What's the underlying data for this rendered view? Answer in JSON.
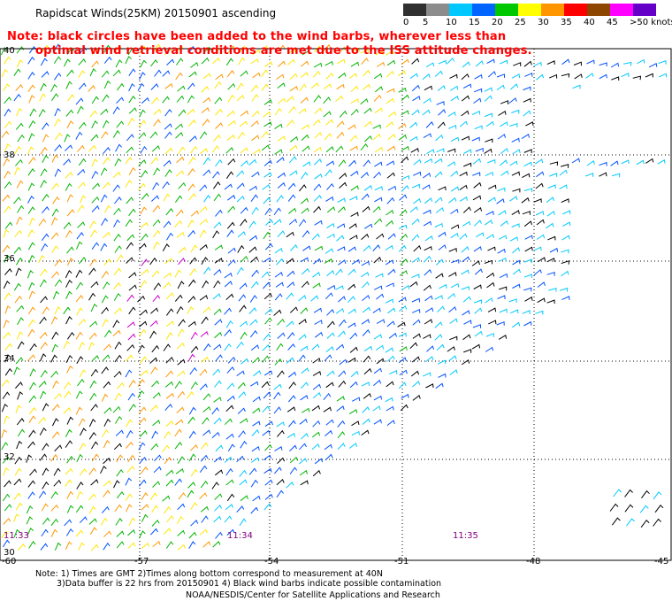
{
  "title": "Rapidscat Winds(25KM) 20150901 ascending",
  "note_lines": [
    "Note: black circles have been added to the wind barbs, wherever less than",
    "optimal wind retrieval conditions are met due to the ISS attitude changes."
  ],
  "legend": {
    "labels": [
      "0",
      "5",
      "10",
      "15",
      "20",
      "25",
      "30",
      "35",
      "40",
      "45",
      ">50 knots"
    ],
    "colors": [
      "#303030",
      "#8c8c8c",
      "#00c8ff",
      "#0064ff",
      "#00c800",
      "#ffff00",
      "#ff9600",
      "#ff0000",
      "#8c4600",
      "#ff00ff",
      "#6400c8"
    ]
  },
  "axes": {
    "lat_labels": [
      "40",
      "38",
      "36",
      "34",
      "32",
      "30"
    ],
    "lon_labels": [
      "-60",
      "-57",
      "-54",
      "-51",
      "-48",
      "-45"
    ]
  },
  "time_labels": [
    "11:33",
    "11:34",
    "11:35"
  ],
  "footer": {
    "line1": "Note: 1) Times are GMT 2)Times along bottom correspond to measurement at 40N",
    "line2": "3)Data buffer is 22 hrs from 20150901 4) Black wind barbs indicate possible contamination",
    "credit": "NOAA/NESDIS/Center for Satellite Applications and Research"
  }
}
